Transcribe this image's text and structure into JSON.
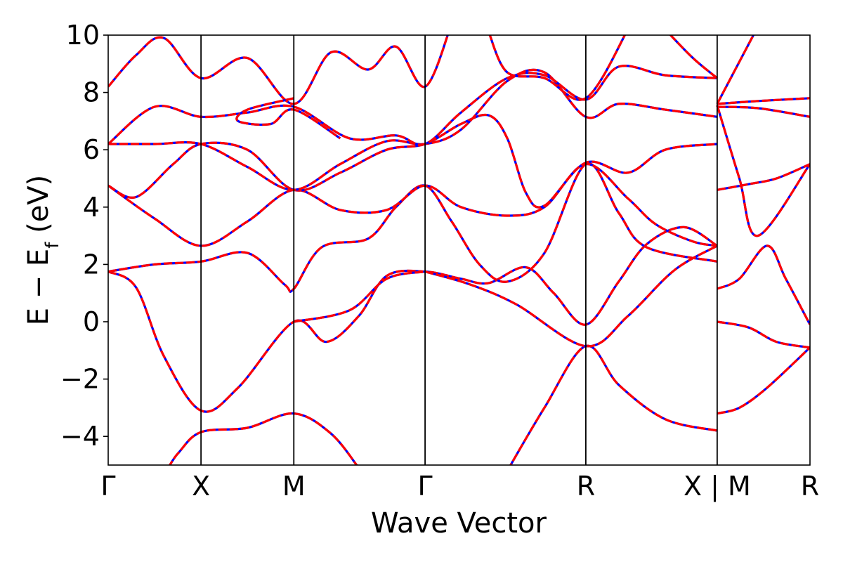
{
  "chart_data": {
    "type": "line",
    "title": "",
    "xlabel": "Wave Vector",
    "ylabel": "E − E",
    "ylabel_sub": "f",
    "ylabel_unit": " (eV)",
    "ylim": [
      -5,
      10
    ],
    "yticks": [
      10,
      8,
      6,
      4,
      2,
      0,
      -2,
      -4
    ],
    "ytick_labels": [
      "10",
      "8",
      "6",
      "4",
      "2",
      "0",
      "−2",
      "−4"
    ],
    "xlim": [
      0,
      7.6
    ],
    "kpoints": [
      {
        "label": "Γ",
        "x": 0
      },
      {
        "label": "X",
        "x": 1
      },
      {
        "label": "M",
        "x": 2
      },
      {
        "label": "Γ",
        "x": 3.414
      },
      {
        "label": "R",
        "x": 5.146
      },
      {
        "label": "X | M",
        "x": 6.561
      },
      {
        "label": "R",
        "x": 7.561
      }
    ],
    "series_styles": [
      {
        "color": "#0000ff",
        "style": "solid"
      },
      {
        "color": "#ff0000",
        "style": "dashed"
      }
    ],
    "bands": [
      [
        [
          0,
          -6.0
        ],
        [
          0.5,
          -5.6
        ],
        [
          0.75,
          -4.6
        ],
        [
          1,
          -3.85
        ],
        [
          1.5,
          -3.7
        ],
        [
          2,
          -3.2
        ],
        [
          2.4,
          -3.9
        ],
        [
          2.7,
          -5.1
        ]
      ],
      [
        [
          4.3,
          -5.2
        ],
        [
          4.7,
          -3.0
        ],
        [
          5.146,
          -0.85
        ],
        [
          5.5,
          -2.2
        ],
        [
          6.0,
          -3.4
        ],
        [
          6.561,
          -3.8
        ]
      ],
      [
        [
          0,
          1.75
        ],
        [
          0.3,
          1.2
        ],
        [
          0.6,
          -1.2
        ],
        [
          1,
          -3.1
        ],
        [
          1.4,
          -2.3
        ],
        [
          2,
          0.0
        ],
        [
          2.35,
          -0.7
        ],
        [
          2.7,
          0.2
        ],
        [
          3.0,
          1.6
        ],
        [
          3.414,
          1.75
        ],
        [
          3.8,
          1.5
        ],
        [
          4.1,
          1.35
        ],
        [
          4.5,
          1.9
        ],
        [
          4.8,
          1.0
        ],
        [
          5.146,
          -0.1
        ],
        [
          5.5,
          1.4
        ],
        [
          5.8,
          2.7
        ],
        [
          6.2,
          3.3
        ],
        [
          6.561,
          2.65
        ]
      ],
      [
        [
          6.561,
          -3.2
        ],
        [
          6.8,
          -3.0
        ],
        [
          7.1,
          -2.3
        ],
        [
          7.561,
          -0.9
        ]
      ],
      [
        [
          0,
          1.75
        ],
        [
          0.5,
          2.0
        ],
        [
          1,
          2.1
        ],
        [
          1.5,
          2.4
        ],
        [
          1.9,
          1.3
        ],
        [
          2,
          1.15
        ],
        [
          2.3,
          2.6
        ],
        [
          2.8,
          2.9
        ],
        [
          3.1,
          4.0
        ],
        [
          3.414,
          4.75
        ],
        [
          3.7,
          3.5
        ],
        [
          4.0,
          2.0
        ],
        [
          4.3,
          1.4
        ],
        [
          4.7,
          2.4
        ],
        [
          5.146,
          5.5
        ],
        [
          5.5,
          3.8
        ],
        [
          5.8,
          2.6
        ],
        [
          6.561,
          2.1
        ]
      ],
      [
        [
          3.414,
          1.75
        ],
        [
          3.9,
          1.3
        ],
        [
          4.4,
          0.6
        ],
        [
          5.146,
          -0.85
        ],
        [
          5.6,
          0.2
        ],
        [
          6.1,
          1.8
        ],
        [
          6.561,
          2.65
        ]
      ],
      [
        [
          2,
          0.0
        ],
        [
          2.6,
          0.4
        ],
        [
          3.0,
          1.5
        ],
        [
          3.414,
          1.75
        ]
      ],
      [
        [
          0,
          4.75
        ],
        [
          0.5,
          3.6
        ],
        [
          1,
          2.65
        ],
        [
          1.5,
          3.5
        ],
        [
          2,
          4.6
        ],
        [
          2.5,
          3.9
        ],
        [
          3.0,
          3.9
        ],
        [
          3.414,
          4.75
        ],
        [
          3.8,
          4.0
        ],
        [
          4.3,
          3.7
        ],
        [
          4.7,
          4.0
        ],
        [
          5.146,
          5.5
        ],
        [
          5.6,
          4.3
        ],
        [
          5.9,
          3.4
        ],
        [
          6.3,
          2.8
        ],
        [
          6.561,
          2.65
        ]
      ],
      [
        [
          0,
          4.75
        ],
        [
          0.3,
          4.35
        ],
        [
          0.7,
          5.5
        ],
        [
          1,
          6.2
        ],
        [
          1.5,
          6.0
        ],
        [
          2,
          4.6
        ],
        [
          2.5,
          5.2
        ],
        [
          3.0,
          6.0
        ],
        [
          3.414,
          6.2
        ],
        [
          3.8,
          6.9
        ],
        [
          4.1,
          7.2
        ],
        [
          4.3,
          6.4
        ],
        [
          4.5,
          4.5
        ],
        [
          4.7,
          4.05
        ],
        [
          5.146,
          5.55
        ],
        [
          5.6,
          5.2
        ],
        [
          6.0,
          6.0
        ],
        [
          6.561,
          6.2
        ]
      ],
      [
        [
          0,
          6.2
        ],
        [
          0.5,
          6.2
        ],
        [
          1,
          6.2
        ],
        [
          1.5,
          5.4
        ],
        [
          2,
          4.6
        ],
        [
          2.5,
          5.5
        ],
        [
          3.0,
          6.3
        ],
        [
          3.414,
          6.2
        ],
        [
          3.8,
          6.7
        ],
        [
          4.3,
          8.4
        ],
        [
          4.7,
          8.7
        ],
        [
          5.146,
          7.15
        ],
        [
          5.5,
          7.6
        ],
        [
          6.0,
          7.4
        ],
        [
          6.561,
          7.15
        ]
      ],
      [
        [
          0,
          6.2
        ],
        [
          0.5,
          7.5
        ],
        [
          1,
          7.15
        ],
        [
          1.5,
          7.3
        ],
        [
          2,
          7.5
        ],
        [
          2.6,
          6.4
        ],
        [
          3.1,
          6.5
        ],
        [
          3.414,
          6.2
        ],
        [
          3.8,
          7.3
        ],
        [
          4.3,
          8.5
        ],
        [
          4.7,
          8.6
        ],
        [
          5.146,
          7.75
        ],
        [
          5.5,
          8.9
        ],
        [
          6.0,
          8.6
        ],
        [
          6.561,
          8.5
        ]
      ],
      [
        [
          0,
          8.2
        ],
        [
          0.3,
          9.3
        ],
        [
          0.6,
          9.9
        ],
        [
          1,
          8.5
        ],
        [
          1.5,
          9.2
        ],
        [
          2,
          7.6
        ],
        [
          2.4,
          9.4
        ],
        [
          2.8,
          8.8
        ],
        [
          3.1,
          9.6
        ],
        [
          3.414,
          8.2
        ],
        [
          3.7,
          10.4
        ]
      ],
      [
        [
          2,
          7.8
        ],
        [
          1.5,
          7.4
        ],
        [
          1.4,
          7.0
        ],
        [
          1.75,
          6.9
        ],
        [
          2,
          7.4
        ],
        [
          2.5,
          6.4
        ]
      ],
      [
        [
          4.1,
          10.1
        ],
        [
          4.3,
          8.7
        ],
        [
          4.7,
          8.5
        ],
        [
          5.146,
          7.8
        ],
        [
          5.6,
          10.2
        ]
      ],
      [
        [
          6.561,
          7.55
        ],
        [
          6.8,
          5.0
        ],
        [
          7.0,
          3.0
        ],
        [
          7.561,
          5.5
        ]
      ],
      [
        [
          6.561,
          4.6
        ],
        [
          6.9,
          4.8
        ],
        [
          7.2,
          5.0
        ],
        [
          7.561,
          5.5
        ]
      ],
      [
        [
          6.561,
          1.15
        ],
        [
          6.8,
          1.5
        ],
        [
          7.1,
          2.65
        ],
        [
          7.3,
          1.5
        ],
        [
          7.561,
          -0.1
        ]
      ],
      [
        [
          6.561,
          0.0
        ],
        [
          6.9,
          -0.2
        ],
        [
          7.2,
          -0.7
        ],
        [
          7.561,
          -0.9
        ]
      ],
      [
        [
          6.561,
          7.6
        ],
        [
          7.0,
          7.7
        ],
        [
          7.561,
          7.8
        ]
      ],
      [
        [
          6.561,
          7.5
        ],
        [
          7.0,
          7.45
        ],
        [
          7.561,
          7.15
        ]
      ],
      [
        [
          6.561,
          7.6
        ],
        [
          7.0,
          10.3
        ]
      ],
      [
        [
          6.561,
          8.5
        ],
        [
          6.3,
          9.2
        ],
        [
          6.0,
          10.2
        ]
      ]
    ]
  }
}
